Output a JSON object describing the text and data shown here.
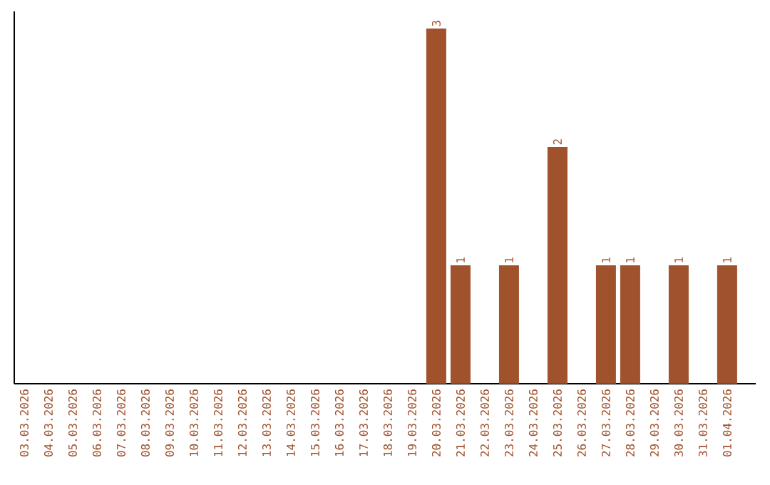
{
  "chart_data": {
    "type": "bar",
    "categories": [
      "03.03.2026",
      "04.03.2026",
      "05.03.2026",
      "06.03.2026",
      "07.03.2026",
      "08.03.2026",
      "09.03.2026",
      "10.03.2026",
      "11.03.2026",
      "12.03.2026",
      "13.03.2026",
      "14.03.2026",
      "15.03.2026",
      "16.03.2026",
      "17.03.2026",
      "18.03.2026",
      "19.03.2026",
      "20.03.2026",
      "21.03.2026",
      "22.03.2026",
      "23.03.2026",
      "24.03.2026",
      "25.03.2026",
      "26.03.2026",
      "27.03.2026",
      "28.03.2026",
      "29.03.2026",
      "30.03.2026",
      "31.03.2026",
      "01.04.2026"
    ],
    "values": [
      null,
      null,
      null,
      null,
      null,
      null,
      null,
      null,
      null,
      null,
      null,
      null,
      null,
      null,
      null,
      null,
      null,
      3,
      1,
      null,
      1,
      null,
      2,
      null,
      1,
      1,
      null,
      1,
      null,
      1
    ],
    "value_labels": [
      null,
      null,
      null,
      null,
      null,
      null,
      null,
      null,
      null,
      null,
      null,
      null,
      null,
      null,
      null,
      null,
      null,
      "3",
      "1",
      null,
      "1",
      null,
      "2",
      null,
      "1",
      "1",
      null,
      "1",
      null,
      "1"
    ],
    "color": "#a0522d",
    "grid": false
  }
}
